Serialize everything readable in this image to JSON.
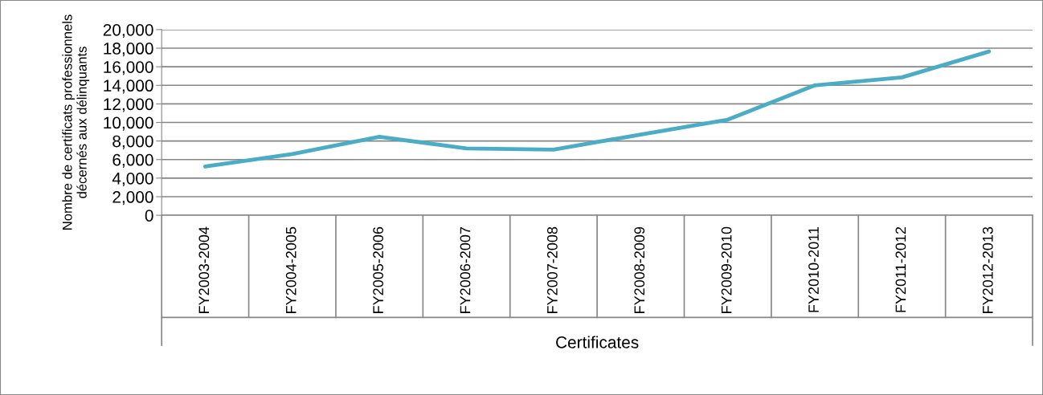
{
  "chart_data": {
    "type": "line",
    "xlabel": "Certificates",
    "ylabel": "Nombre de certificats professionnels\ndécernés aux délinquants",
    "categories": [
      "FY2003-2004",
      "FY2004-2005",
      "FY2005-2006",
      "FY2006-2007",
      "FY2007-2008",
      "FY2008-2009",
      "FY2009-2010",
      "FY2010-2011",
      "FY2011-2012",
      "FY2012-2013"
    ],
    "series": [
      {
        "color": "#4bacc6",
        "values": [
          5250,
          6600,
          8450,
          7200,
          7070,
          8700,
          10300,
          14000,
          14850,
          17650
        ]
      }
    ],
    "ylim": [
      0,
      20000
    ],
    "yticks": [
      {
        "value": 0,
        "label": "0"
      },
      {
        "value": 2000,
        "label": "2,000"
      },
      {
        "value": 4000,
        "label": "4,000"
      },
      {
        "value": 6000,
        "label": "6,000"
      },
      {
        "value": 8000,
        "label": "8,000"
      },
      {
        "value": 10000,
        "label": "10,000"
      },
      {
        "value": 12000,
        "label": "12,000"
      },
      {
        "value": 14000,
        "label": "14,000"
      },
      {
        "value": 16000,
        "label": "16,000"
      },
      {
        "value": 18000,
        "label": "18,000"
      },
      {
        "value": 20000,
        "label": "20,000"
      }
    ],
    "grid": "y",
    "marker": "none",
    "line_style": "solid"
  }
}
